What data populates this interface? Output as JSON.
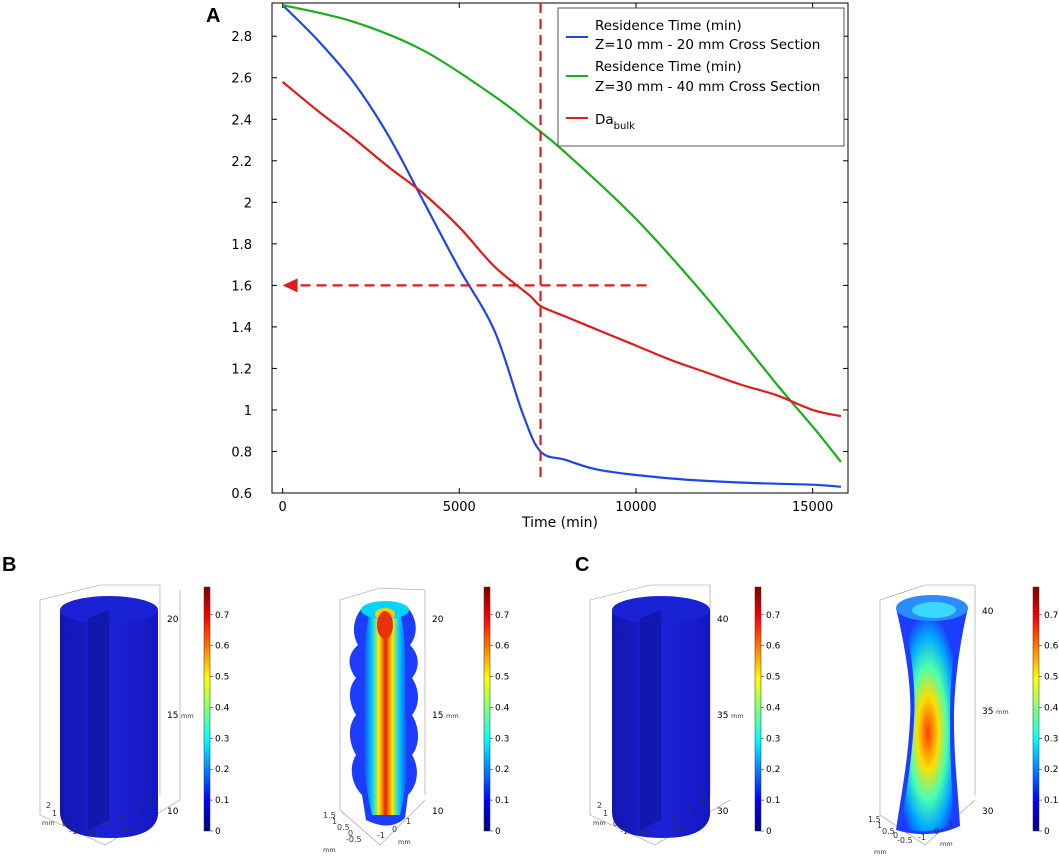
{
  "panels": {
    "a": "A",
    "b": "B",
    "c": "C"
  },
  "chart_data": [
    {
      "type": "line",
      "panel": "A",
      "title": "",
      "xlabel": "Time (min)",
      "ylabel": "",
      "xlim": [
        -300,
        16000
      ],
      "ylim": [
        0.6,
        2.96
      ],
      "x_ticks": [
        0,
        5000,
        10000,
        15000
      ],
      "x_tick_labels": [
        "0",
        "5000",
        "10000",
        "15000"
      ],
      "y_ticks": [
        0.6,
        0.8,
        1.0,
        1.2,
        1.4,
        1.6,
        1.8,
        2.0,
        2.2,
        2.4,
        2.6,
        2.8
      ],
      "y_tick_labels": [
        "0.6",
        "0.8",
        "1",
        "1.2",
        "1.4",
        "1.6",
        "1.8",
        "2",
        "2.2",
        "2.4",
        "2.6",
        "2.8"
      ],
      "legend_position": "top-right",
      "series": [
        {
          "name": "Residence Time (min) Z=10 mm - 20 mm Cross Section",
          "legend_lines": [
            "Residence Time (min)",
            "Z=10 mm - 20 mm Cross Section"
          ],
          "color": "#1f45e6",
          "x": [
            0,
            1000,
            2000,
            3000,
            4000,
            5000,
            6000,
            6800,
            7300,
            8000,
            9000,
            11000,
            13000,
            15000,
            15800
          ],
          "y": [
            2.95,
            2.78,
            2.58,
            2.32,
            2.0,
            1.68,
            1.38,
            0.98,
            0.8,
            0.76,
            0.71,
            0.67,
            0.65,
            0.64,
            0.63
          ]
        },
        {
          "name": "Residence Time (min) Z=30 mm - 40 mm Cross Section",
          "legend_lines": [
            "Residence Time (min)",
            "Z=30 mm - 40 mm Cross Section"
          ],
          "color": "#1aae1a",
          "x": [
            0,
            2000,
            4000,
            6000,
            7000,
            8000,
            10000,
            12000,
            14000,
            15000,
            15800
          ],
          "y": [
            2.95,
            2.87,
            2.73,
            2.51,
            2.38,
            2.24,
            1.92,
            1.54,
            1.12,
            0.92,
            0.75
          ]
        },
        {
          "name": "Da_bulk",
          "legend_main": "Da",
          "legend_sub": "bulk",
          "color": "#e01b1b",
          "x": [
            0,
            1000,
            2000,
            3000,
            4000,
            5000,
            6000,
            7000,
            7300,
            8000,
            9000,
            10000,
            11000,
            12000,
            13000,
            14000,
            15000,
            15800
          ],
          "y": [
            2.58,
            2.44,
            2.31,
            2.17,
            2.04,
            1.88,
            1.69,
            1.55,
            1.5,
            1.45,
            1.38,
            1.31,
            1.24,
            1.18,
            1.12,
            1.07,
            1.0,
            0.97
          ]
        }
      ],
      "annotations": [
        {
          "type": "vertical-dashed-line",
          "x": 7300,
          "color": "#e01b1b"
        },
        {
          "type": "horizontal-dashed-arrow",
          "y": 1.6,
          "from_x": 10300,
          "to_x": 0,
          "color": "#e01b1b"
        }
      ]
    },
    {
      "type": "heatmap",
      "panel": "B",
      "description": "3D cylinder contour plots, Z=10 mm - 20 mm section",
      "left_plot": {
        "z_ticks": [
          "20",
          "15",
          "10"
        ],
        "z_unit": "mm",
        "xy_ticks_left": [
          "2",
          "1",
          "0",
          "-1"
        ],
        "xy_ticks_right": [
          "-2",
          "-1",
          "0",
          "1",
          "2"
        ],
        "colorbar_ticks": [
          "0.7",
          "0.6",
          "0.5",
          "0.4",
          "0.3",
          "0.2",
          "0.1",
          "0"
        ]
      },
      "right_plot": {
        "z_ticks": [
          "20",
          "15",
          "10"
        ],
        "z_unit": "mm",
        "xy_ticks_left": [
          "1.5",
          "1",
          "0.5",
          "0",
          "-0.5"
        ],
        "xy_ticks_right": [
          "-1",
          "0",
          "1"
        ],
        "colorbar_ticks": [
          "0.7",
          "0.6",
          "0.5",
          "0.4",
          "0.3",
          "0.2",
          "0.1",
          "0"
        ]
      }
    },
    {
      "type": "heatmap",
      "panel": "C",
      "description": "3D cylinder contour plots, Z=30 mm - 40 mm section",
      "left_plot": {
        "z_ticks": [
          "40",
          "35",
          "30"
        ],
        "z_unit": "mm",
        "xy_ticks_left": [
          "2",
          "1",
          "0",
          "-1"
        ],
        "xy_ticks_right": [
          "-2",
          "-1",
          "0",
          "1",
          "2"
        ],
        "colorbar_ticks": [
          "0.7",
          "0.6",
          "0.5",
          "0.4",
          "0.3",
          "0.2",
          "0.1",
          "0"
        ]
      },
      "right_plot": {
        "z_ticks": [
          "40",
          "35",
          "30"
        ],
        "z_unit": "mm",
        "xy_ticks_left": [
          "1.5",
          "1",
          "0.5",
          "0",
          "-0.5"
        ],
        "xy_ticks_right": [
          "-1",
          "0",
          "1"
        ],
        "colorbar_ticks": [
          "0.7",
          "0.6",
          "0.5",
          "0.4",
          "0.3",
          "0.2",
          "0.1",
          "0"
        ]
      }
    }
  ],
  "colors": {
    "jet_low": "#00007f",
    "jet_mid": "#7fff7f",
    "jet_high": "#7f0000",
    "cylinder_blue": "#1a1ecc"
  }
}
